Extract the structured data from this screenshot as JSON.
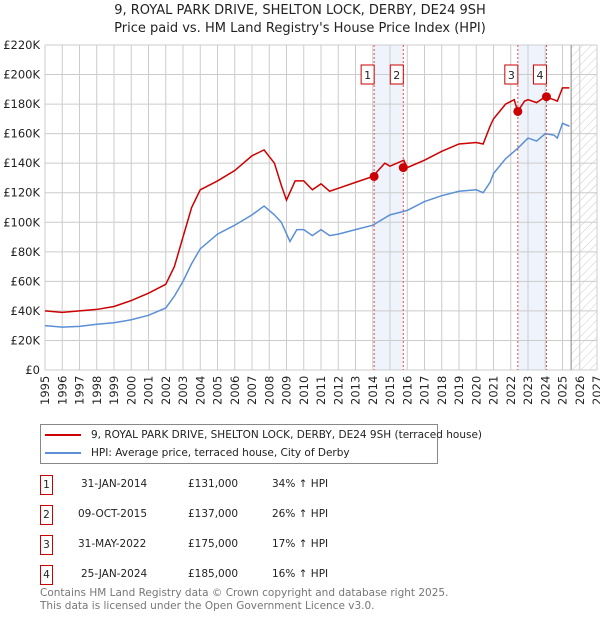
{
  "chart_data": {
    "type": "line",
    "title": "9, ROYAL PARK DRIVE, SHELTON LOCK, DERBY, DE24 9SH",
    "subtitle": "Price paid vs. HM Land Registry's House Price Index (HPI)",
    "xlim": [
      1995,
      2027
    ],
    "ylim": [
      0,
      220000
    ],
    "y_ticks": [
      {
        "v": 0,
        "label": "£0"
      },
      {
        "v": 20000,
        "label": "£20K"
      },
      {
        "v": 40000,
        "label": "£40K"
      },
      {
        "v": 60000,
        "label": "£60K"
      },
      {
        "v": 80000,
        "label": "£80K"
      },
      {
        "v": 100000,
        "label": "£100K"
      },
      {
        "v": 120000,
        "label": "£120K"
      },
      {
        "v": 140000,
        "label": "£140K"
      },
      {
        "v": 160000,
        "label": "£160K"
      },
      {
        "v": 180000,
        "label": "£180K"
      },
      {
        "v": 200000,
        "label": "£200K"
      },
      {
        "v": 220000,
        "label": "£220K"
      }
    ],
    "x_ticks": [
      "1995",
      "1996",
      "1997",
      "1998",
      "1999",
      "2000",
      "2001",
      "2002",
      "2003",
      "2004",
      "2005",
      "2006",
      "2007",
      "2008",
      "2009",
      "2010",
      "2011",
      "2012",
      "2013",
      "2014",
      "2015",
      "2016",
      "2017",
      "2018",
      "2019",
      "2020",
      "2021",
      "2022",
      "2023",
      "2024",
      "2025",
      "2026",
      "2027"
    ],
    "grid": true,
    "forecast_hatch_from": 2025.5,
    "series": [
      {
        "name": "9, ROYAL PARK DRIVE, SHELTON LOCK, DERBY, DE24 9SH (terraced house)",
        "color": "#cc0000",
        "x": [
          1995,
          1996,
          1997,
          1998,
          1999,
          2000,
          2001,
          2002,
          2002.5,
          2003,
          2003.5,
          2004,
          2005,
          2006,
          2007,
          2007.7,
          2008.3,
          2008.7,
          2009.0,
          2009.5,
          2010,
          2010.5,
          2011,
          2011.5,
          2012,
          2013,
          2014,
          2014.7,
          2015,
          2015.8,
          2016,
          2017,
          2018,
          2019,
          2020,
          2020.4,
          2020.8,
          2021,
          2021.7,
          2022.2,
          2022.4,
          2022.8,
          2023,
          2023.5,
          2024,
          2024.5,
          2024.7,
          2025,
          2025.4
        ],
        "y": [
          40000,
          39000,
          40000,
          41000,
          43000,
          47000,
          52000,
          58000,
          70000,
          90000,
          110000,
          122000,
          128000,
          135000,
          145000,
          149000,
          140000,
          125000,
          115000,
          128000,
          128000,
          122000,
          126000,
          121000,
          123000,
          127000,
          131000,
          140000,
          138000,
          142000,
          137000,
          142000,
          148000,
          153000,
          154000,
          153000,
          165000,
          170000,
          180000,
          183000,
          175000,
          182000,
          183000,
          181000,
          185000,
          183000,
          182000,
          191000,
          191000
        ]
      },
      {
        "name": "HPI: Average price, terraced house, City of Derby",
        "color": "#5b8fd6",
        "x": [
          1995,
          1996,
          1997,
          1998,
          1999,
          2000,
          2001,
          2002,
          2002.5,
          2003,
          2003.5,
          2004,
          2005,
          2006,
          2007,
          2007.7,
          2008.3,
          2008.7,
          2009.2,
          2009.6,
          2010,
          2010.5,
          2011,
          2011.5,
          2012,
          2013,
          2014,
          2015,
          2016,
          2017,
          2018,
          2019,
          2020,
          2020.4,
          2020.8,
          2021,
          2021.7,
          2022.4,
          2023,
          2023.5,
          2024,
          2024.5,
          2024.7,
          2025,
          2025.4
        ],
        "y": [
          30000,
          29000,
          29500,
          31000,
          32000,
          34000,
          37000,
          42000,
          50000,
          60000,
          72000,
          82000,
          92000,
          98000,
          105000,
          111000,
          105000,
          100000,
          87000,
          95000,
          95000,
          91000,
          95000,
          91000,
          92000,
          95000,
          98000,
          105000,
          108000,
          114000,
          118000,
          121000,
          122000,
          120000,
          127000,
          133000,
          143000,
          150000,
          157000,
          155000,
          160000,
          159000,
          157000,
          167000,
          165000
        ]
      }
    ],
    "transactions": [
      {
        "label": "1",
        "date": "31-JAN-2014",
        "x": 2014.08,
        "price": "£131,000",
        "value": 131000,
        "hpi": "34% ↑ HPI"
      },
      {
        "label": "2",
        "date": "09-OCT-2015",
        "x": 2015.77,
        "price": "£137,000",
        "value": 137000,
        "hpi": "26% ↑ HPI"
      },
      {
        "label": "3",
        "date": "31-MAY-2022",
        "x": 2022.41,
        "price": "£175,000",
        "value": 175000,
        "hpi": "17% ↑ HPI"
      },
      {
        "label": "4",
        "date": "25-JAN-2024",
        "x": 2024.07,
        "price": "£185,000",
        "value": 185000,
        "hpi": "16% ↑ HPI"
      }
    ]
  },
  "footer": {
    "line1": "Contains HM Land Registry data © Crown copyright and database right 2025.",
    "line2": "This data is licensed under the Open Government Licence v3.0."
  }
}
